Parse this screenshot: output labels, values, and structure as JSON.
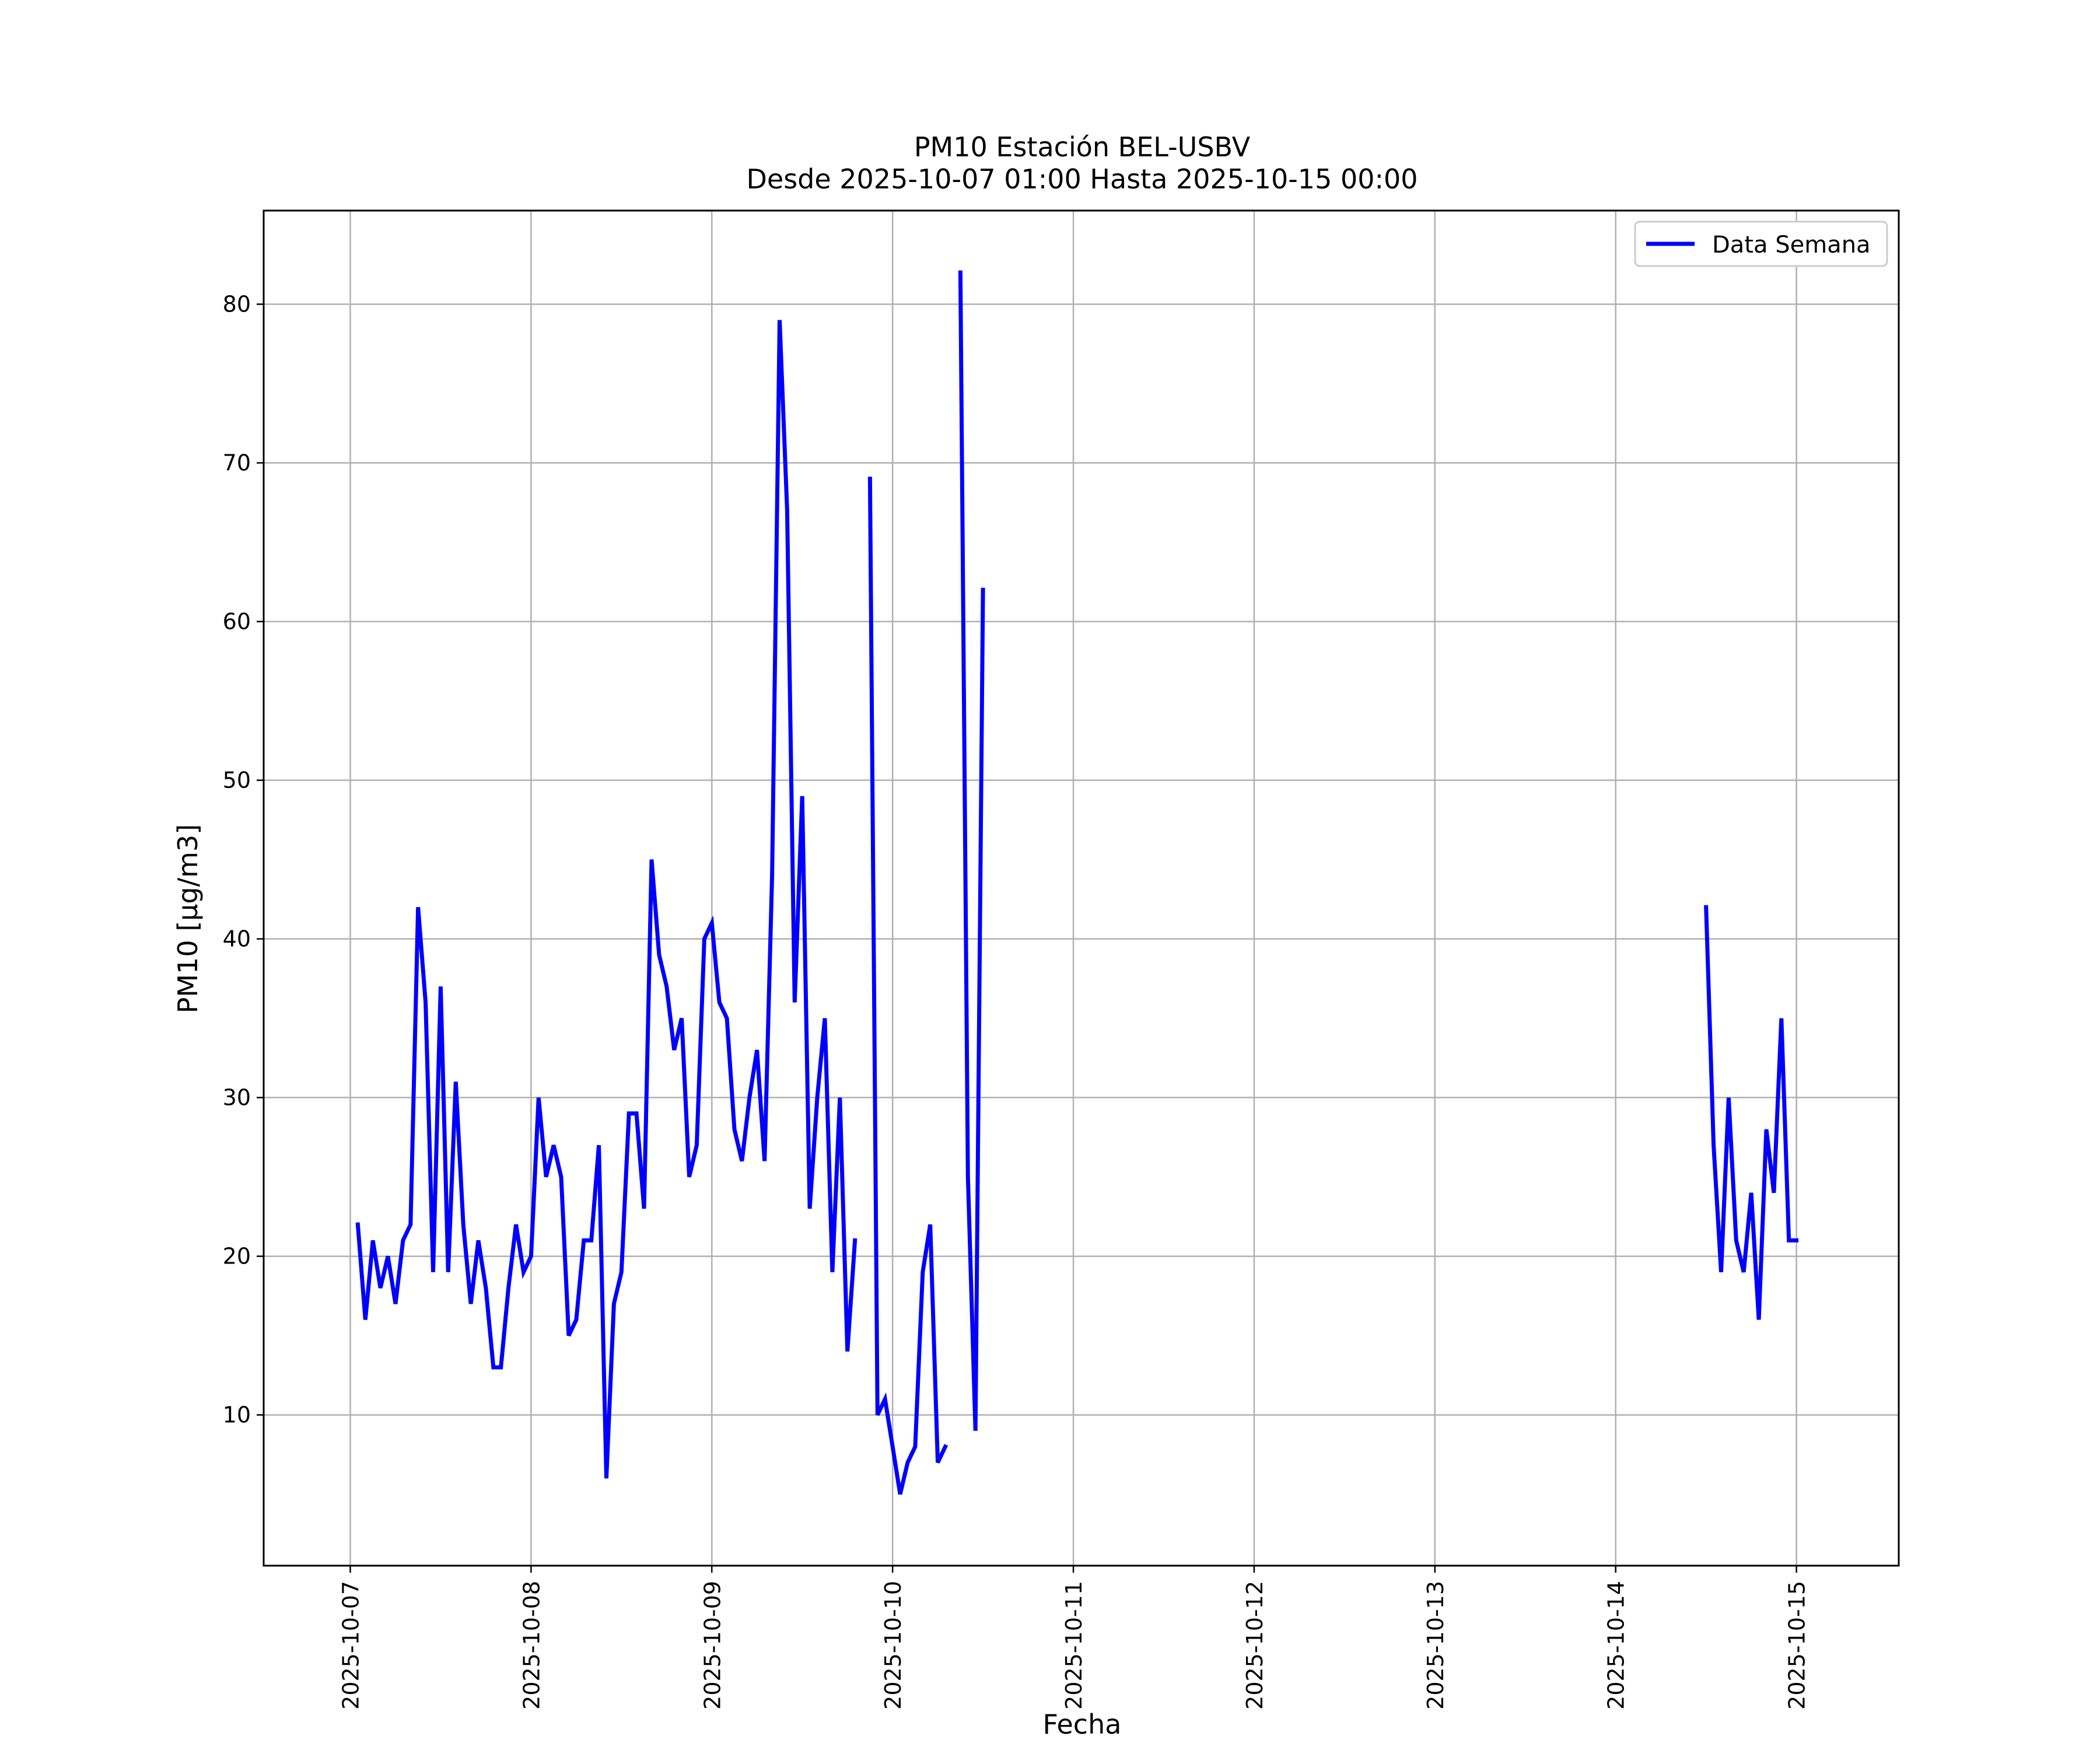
{
  "chart_data": {
    "type": "line",
    "title": "PM10 Estación BEL-USBV",
    "subtitle": "Desde 2025-10-07 01:00 Hasta 2025-10-15 00:00",
    "xlabel": "Fecha",
    "ylabel": "PM10 [μg/m3]",
    "x_ticks": [
      "2025-10-07",
      "2025-10-08",
      "2025-10-09",
      "2025-10-10",
      "2025-10-11",
      "2025-10-12",
      "2025-10-13",
      "2025-10-14",
      "2025-10-15"
    ],
    "y_ticks": [
      10,
      20,
      30,
      40,
      50,
      60,
      70,
      80
    ],
    "xlim": [
      "2025-10-06 12:30",
      "2025-10-15 13:35"
    ],
    "ylim": [
      0.5,
      85.9
    ],
    "grid": true,
    "legend_position": "top-right",
    "series": [
      {
        "name": "Data Semana",
        "color": "#0000ff",
        "points": [
          [
            "2025-10-07 01:00",
            22
          ],
          [
            "2025-10-07 02:00",
            16
          ],
          [
            "2025-10-07 03:00",
            21
          ],
          [
            "2025-10-07 04:00",
            18
          ],
          [
            "2025-10-07 05:00",
            20
          ],
          [
            "2025-10-07 06:00",
            17
          ],
          [
            "2025-10-07 07:00",
            21
          ],
          [
            "2025-10-07 08:00",
            22
          ],
          [
            "2025-10-07 09:00",
            42
          ],
          [
            "2025-10-07 10:00",
            36
          ],
          [
            "2025-10-07 11:00",
            19
          ],
          [
            "2025-10-07 12:00",
            37
          ],
          [
            "2025-10-07 13:00",
            19
          ],
          [
            "2025-10-07 14:00",
            31
          ],
          [
            "2025-10-07 15:00",
            22
          ],
          [
            "2025-10-07 16:00",
            17
          ],
          [
            "2025-10-07 17:00",
            21
          ],
          [
            "2025-10-07 18:00",
            18
          ],
          [
            "2025-10-07 19:00",
            13
          ],
          [
            "2025-10-07 20:00",
            13
          ],
          [
            "2025-10-07 21:00",
            18
          ],
          [
            "2025-10-07 22:00",
            22
          ],
          [
            "2025-10-07 23:00",
            19
          ],
          [
            "2025-10-08 00:00",
            20
          ],
          [
            "2025-10-08 01:00",
            30
          ],
          [
            "2025-10-08 02:00",
            25
          ],
          [
            "2025-10-08 03:00",
            27
          ],
          [
            "2025-10-08 04:00",
            25
          ],
          [
            "2025-10-08 05:00",
            15
          ],
          [
            "2025-10-08 06:00",
            16
          ],
          [
            "2025-10-08 07:00",
            21
          ],
          [
            "2025-10-08 08:00",
            21
          ],
          [
            "2025-10-08 09:00",
            27
          ],
          [
            "2025-10-08 10:00",
            6
          ],
          [
            "2025-10-08 11:00",
            17
          ],
          [
            "2025-10-08 12:00",
            19
          ],
          [
            "2025-10-08 13:00",
            29
          ],
          [
            "2025-10-08 14:00",
            29
          ],
          [
            "2025-10-08 15:00",
            23
          ],
          [
            "2025-10-08 16:00",
            45
          ],
          [
            "2025-10-08 17:00",
            39
          ],
          [
            "2025-10-08 18:00",
            37
          ],
          [
            "2025-10-08 19:00",
            33
          ],
          [
            "2025-10-08 20:00",
            35
          ],
          [
            "2025-10-08 21:00",
            25
          ],
          [
            "2025-10-08 22:00",
            27
          ],
          [
            "2025-10-08 23:00",
            40
          ],
          [
            "2025-10-09 00:00",
            41
          ],
          [
            "2025-10-09 01:00",
            36
          ],
          [
            "2025-10-09 02:00",
            35
          ],
          [
            "2025-10-09 03:00",
            28
          ],
          [
            "2025-10-09 04:00",
            26
          ],
          [
            "2025-10-09 05:00",
            30
          ],
          [
            "2025-10-09 06:00",
            33
          ],
          [
            "2025-10-09 07:00",
            26
          ],
          [
            "2025-10-09 08:00",
            44
          ],
          [
            "2025-10-09 09:00",
            79
          ],
          [
            "2025-10-09 10:00",
            67
          ],
          [
            "2025-10-09 11:00",
            36
          ],
          [
            "2025-10-09 12:00",
            49
          ],
          [
            "2025-10-09 13:00",
            23
          ],
          [
            "2025-10-09 14:00",
            30
          ],
          [
            "2025-10-09 15:00",
            35
          ],
          [
            "2025-10-09 16:00",
            19
          ],
          [
            "2025-10-09 17:00",
            30
          ],
          [
            "2025-10-09 18:00",
            14
          ],
          [
            "2025-10-09 19:00",
            21
          ],
          null,
          [
            "2025-10-09 21:00",
            69
          ],
          [
            "2025-10-09 22:00",
            10
          ],
          [
            "2025-10-09 23:00",
            11
          ],
          [
            "2025-10-10 00:00",
            8
          ],
          [
            "2025-10-10 01:00",
            5
          ],
          [
            "2025-10-10 02:00",
            7
          ],
          [
            "2025-10-10 03:00",
            8
          ],
          [
            "2025-10-10 04:00",
            19
          ],
          [
            "2025-10-10 05:00",
            22
          ],
          [
            "2025-10-10 06:00",
            7
          ],
          [
            "2025-10-10 07:00",
            8
          ],
          null,
          [
            "2025-10-10 09:00",
            82
          ],
          [
            "2025-10-10 10:00",
            25
          ],
          [
            "2025-10-10 11:00",
            9
          ],
          [
            "2025-10-10 12:00",
            62
          ],
          null,
          [
            "2025-10-14 12:00",
            42
          ],
          [
            "2025-10-14 13:00",
            27
          ],
          [
            "2025-10-14 14:00",
            19
          ],
          [
            "2025-10-14 15:00",
            30
          ],
          [
            "2025-10-14 16:00",
            21
          ],
          [
            "2025-10-14 17:00",
            19
          ],
          [
            "2025-10-14 18:00",
            24
          ],
          [
            "2025-10-14 19:00",
            16
          ],
          [
            "2025-10-14 20:00",
            28
          ],
          [
            "2025-10-14 21:00",
            24
          ],
          [
            "2025-10-14 22:00",
            35
          ],
          [
            "2025-10-14 23:00",
            21
          ],
          [
            "2025-10-15 00:00",
            21
          ]
        ]
      }
    ]
  }
}
